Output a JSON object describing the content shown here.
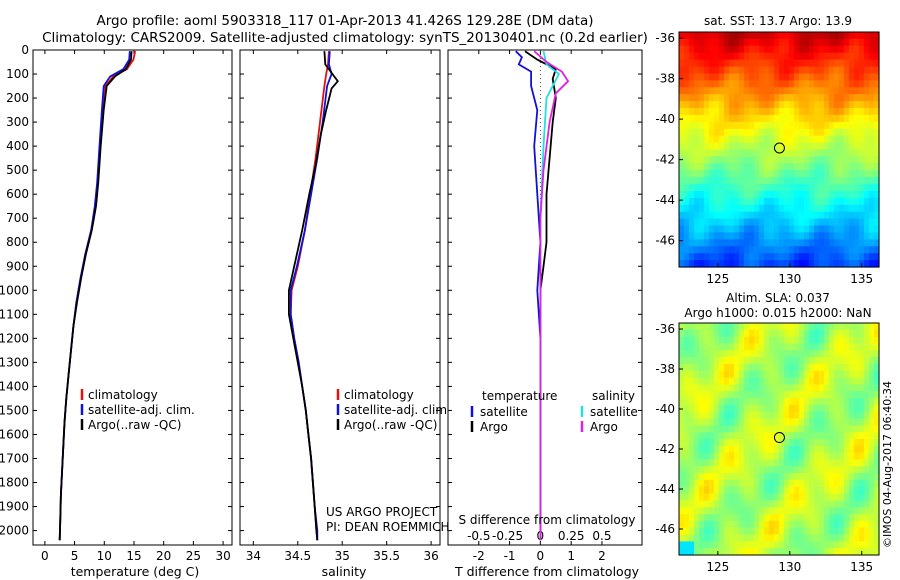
{
  "header": {
    "title": "Argo profile: aoml 5903318_117 01-Apr-2013 41.426S 129.28E (DM data)",
    "subtitle": "Climatology: CARS2009. Satellite-adjusted climatology: synTS_20130401.nc (0.2d earlier)"
  },
  "credits": {
    "project_line1": "US ARGO PROJECT",
    "project_line2": "PI: DEAN ROEMMICH",
    "stamp": "©IMOS 04-Aug-2017 06:40:34"
  },
  "colors": {
    "climatology": "#e01010",
    "satellite": "#1010d8",
    "argo": "#000000",
    "sal_satellite": "#20e0e0",
    "sal_argo": "#e020e0"
  },
  "chart_data": [
    {
      "id": "temperature",
      "type": "line",
      "xlabel": "temperature (deg C)",
      "xlim": [
        -2,
        31.5
      ],
      "xticks": [
        0,
        5,
        10,
        15,
        20,
        25,
        30
      ],
      "ylim": [
        2060,
        0
      ],
      "yticks": [
        0,
        100,
        200,
        300,
        400,
        500,
        600,
        700,
        800,
        900,
        1000,
        1100,
        1200,
        1300,
        1400,
        1500,
        1600,
        1700,
        1800,
        1900,
        2000
      ],
      "legend": [
        "climatology",
        "satellite-adj. clim.",
        "Argo(..raw -QC)"
      ],
      "series": [
        {
          "name": "climatology",
          "color": "climatology",
          "points": [
            [
              15.2,
              5
            ],
            [
              14.9,
              40
            ],
            [
              13.8,
              80
            ],
            [
              11.5,
              110
            ],
            [
              10.2,
              150
            ],
            [
              9.8,
              250
            ],
            [
              9.3,
              400
            ],
            [
              8.9,
              550
            ],
            [
              8.5,
              650
            ],
            [
              7.8,
              750
            ],
            [
              6.8,
              850
            ],
            [
              6.0,
              950
            ],
            [
              5.3,
              1050
            ],
            [
              4.8,
              1150
            ],
            [
              4.4,
              1250
            ],
            [
              4.0,
              1350
            ],
            [
              3.6,
              1450
            ],
            [
              3.3,
              1550
            ],
            [
              3.1,
              1650
            ],
            [
              2.9,
              1750
            ],
            [
              2.7,
              1850
            ],
            [
              2.6,
              1950
            ],
            [
              2.5,
              2040
            ]
          ]
        },
        {
          "name": "satellite-adj. clim.",
          "color": "satellite",
          "points": [
            [
              14.3,
              5
            ],
            [
              14.2,
              40
            ],
            [
              13.2,
              80
            ],
            [
              11.0,
              110
            ],
            [
              9.9,
              150
            ],
            [
              9.6,
              250
            ],
            [
              9.2,
              400
            ],
            [
              8.8,
              550
            ],
            [
              8.4,
              650
            ],
            [
              7.8,
              750
            ],
            [
              6.8,
              850
            ],
            [
              6.0,
              950
            ],
            [
              5.3,
              1050
            ],
            [
              4.8,
              1150
            ],
            [
              4.4,
              1250
            ],
            [
              4.0,
              1350
            ],
            [
              3.6,
              1450
            ],
            [
              3.3,
              1550
            ],
            [
              3.1,
              1650
            ],
            [
              2.9,
              1750
            ],
            [
              2.7,
              1850
            ],
            [
              2.6,
              1950
            ],
            [
              2.5,
              2040
            ]
          ]
        },
        {
          "name": "Argo(..raw -QC)",
          "color": "argo",
          "points": [
            [
              14.6,
              5
            ],
            [
              14.5,
              40
            ],
            [
              13.6,
              80
            ],
            [
              11.8,
              110
            ],
            [
              10.4,
              150
            ],
            [
              9.9,
              250
            ],
            [
              9.4,
              400
            ],
            [
              9.0,
              550
            ],
            [
              8.6,
              650
            ],
            [
              7.9,
              750
            ],
            [
              6.9,
              850
            ],
            [
              6.1,
              950
            ],
            [
              5.4,
              1050
            ],
            [
              4.8,
              1150
            ],
            [
              4.4,
              1250
            ],
            [
              4.0,
              1350
            ],
            [
              3.6,
              1450
            ],
            [
              3.3,
              1550
            ],
            [
              3.1,
              1650
            ],
            [
              2.9,
              1750
            ],
            [
              2.7,
              1850
            ],
            [
              2.6,
              1950
            ],
            [
              2.5,
              2040
            ]
          ]
        }
      ]
    },
    {
      "id": "salinity",
      "type": "line",
      "xlabel": "salinity",
      "xlim": [
        33.85,
        36.1
      ],
      "xticks": [
        "34",
        "34.5",
        "35",
        "35.5",
        "36"
      ],
      "ylim": [
        2060,
        0
      ],
      "legend": [
        "climatology",
        "satellite-adj. clim.",
        "Argo(..raw -QC)"
      ],
      "series": [
        {
          "name": "climatology",
          "color": "climatology",
          "points": [
            [
              34.85,
              5
            ],
            [
              34.84,
              60
            ],
            [
              34.82,
              100
            ],
            [
              34.8,
              150
            ],
            [
              34.75,
              300
            ],
            [
              34.7,
              450
            ],
            [
              34.64,
              600
            ],
            [
              34.58,
              750
            ],
            [
              34.5,
              900
            ],
            [
              34.43,
              1000
            ],
            [
              34.42,
              1100
            ],
            [
              34.46,
              1200
            ],
            [
              34.51,
              1300
            ],
            [
              34.55,
              1400
            ],
            [
              34.59,
              1500
            ],
            [
              34.62,
              1600
            ],
            [
              34.65,
              1700
            ],
            [
              34.67,
              1800
            ],
            [
              34.69,
              1900
            ],
            [
              34.71,
              2000
            ],
            [
              34.72,
              2040
            ]
          ]
        },
        {
          "name": "satellite-adj. clim.",
          "color": "satellite",
          "points": [
            [
              34.86,
              5
            ],
            [
              34.85,
              60
            ],
            [
              34.88,
              100
            ],
            [
              34.83,
              150
            ],
            [
              34.78,
              300
            ],
            [
              34.72,
              450
            ],
            [
              34.65,
              600
            ],
            [
              34.58,
              750
            ],
            [
              34.49,
              900
            ],
            [
              34.42,
              1000
            ],
            [
              34.42,
              1100
            ],
            [
              34.46,
              1200
            ],
            [
              34.51,
              1300
            ],
            [
              34.55,
              1400
            ],
            [
              34.59,
              1500
            ],
            [
              34.62,
              1600
            ],
            [
              34.65,
              1700
            ],
            [
              34.67,
              1800
            ],
            [
              34.69,
              1900
            ],
            [
              34.72,
              2000
            ],
            [
              34.72,
              2040
            ]
          ]
        },
        {
          "name": "Argo(..raw -QC)",
          "color": "argo",
          "points": [
            [
              34.8,
              5
            ],
            [
              34.81,
              60
            ],
            [
              34.91,
              110
            ],
            [
              34.95,
              130
            ],
            [
              34.88,
              160
            ],
            [
              34.82,
              250
            ],
            [
              34.76,
              350
            ],
            [
              34.7,
              480
            ],
            [
              34.63,
              600
            ],
            [
              34.55,
              750
            ],
            [
              34.46,
              900
            ],
            [
              34.4,
              1000
            ],
            [
              34.4,
              1100
            ],
            [
              34.45,
              1200
            ],
            [
              34.5,
              1300
            ],
            [
              34.55,
              1400
            ],
            [
              34.59,
              1500
            ],
            [
              34.62,
              1600
            ],
            [
              34.65,
              1700
            ],
            [
              34.67,
              1800
            ],
            [
              34.69,
              1900
            ],
            [
              34.71,
              2000
            ],
            [
              34.72,
              2040
            ]
          ]
        }
      ]
    },
    {
      "id": "difference",
      "type": "line",
      "xlabel": "T difference from climatology",
      "xlabel_top": "S difference from climatology",
      "xlim": [
        -3,
        3.3
      ],
      "xticks": [
        "-2",
        "-1",
        "0",
        "1",
        "2"
      ],
      "xticks_top": [
        {
          "at": -2,
          "label": "-0.5"
        },
        {
          "at": -1,
          "label": "-0.25"
        },
        {
          "at": 0,
          "label": "0"
        },
        {
          "at": 1,
          "label": "0.25"
        },
        {
          "at": 2,
          "label": "0.5"
        }
      ],
      "ylim": [
        2060,
        0
      ],
      "legend_groups": [
        {
          "title": "temperature",
          "items": [
            "satellite",
            "Argo"
          ],
          "colors": [
            "satellite",
            "argo"
          ]
        },
        {
          "title": "salinity",
          "items": [
            "satellite",
            "Argo"
          ],
          "colors": [
            "sal_satellite",
            "sal_argo"
          ]
        }
      ],
      "series": [
        {
          "name": "T satellite",
          "color": "satellite",
          "points": [
            [
              -0.8,
              5
            ],
            [
              -0.6,
              30
            ],
            [
              -0.7,
              60
            ],
            [
              -0.3,
              90
            ],
            [
              -0.3,
              150
            ],
            [
              -0.1,
              250
            ],
            [
              -0.2,
              400
            ],
            [
              -0.1,
              600
            ],
            [
              0.0,
              800
            ],
            [
              -0.1,
              1000
            ],
            [
              0.0,
              1200
            ],
            [
              0.0,
              1500
            ],
            [
              0.0,
              2040
            ]
          ]
        },
        {
          "name": "T Argo",
          "color": "argo",
          "points": [
            [
              -0.5,
              5
            ],
            [
              -0.1,
              40
            ],
            [
              0.5,
              80
            ],
            [
              0.4,
              120
            ],
            [
              0.5,
              200
            ],
            [
              0.4,
              300
            ],
            [
              0.3,
              450
            ],
            [
              0.2,
              600
            ],
            [
              0.2,
              800
            ],
            [
              0.1,
              900
            ],
            [
              0.0,
              1000
            ],
            [
              0.0,
              1100
            ],
            [
              0.0,
              1500
            ],
            [
              0.0,
              2040
            ]
          ]
        },
        {
          "name": "S satellite",
          "color": "sal_satellite",
          "points": [
            [
              0.1,
              5
            ],
            [
              0.2,
              60
            ],
            [
              0.6,
              100
            ],
            [
              0.2,
              200
            ],
            [
              0.1,
              400
            ],
            [
              0.0,
              700
            ],
            [
              0.0,
              1000
            ],
            [
              0.0,
              2040
            ]
          ]
        },
        {
          "name": "S Argo",
          "color": "sal_argo",
          "points": [
            [
              -0.2,
              5
            ],
            [
              0.2,
              50
            ],
            [
              0.7,
              90
            ],
            [
              0.9,
              130
            ],
            [
              0.5,
              180
            ],
            [
              0.3,
              300
            ],
            [
              0.1,
              500
            ],
            [
              0.0,
              700
            ],
            [
              0.0,
              1000
            ],
            [
              0.0,
              2040
            ]
          ]
        }
      ]
    },
    {
      "id": "sst_map",
      "type": "heatmap",
      "title": "sat. SST: 13.7 Argo: 13.9",
      "xlim": [
        122.3,
        136.2
      ],
      "ylim": [
        -47.3,
        -35.7
      ],
      "xticks": [
        "125",
        "130",
        "135"
      ],
      "yticks": [
        "-36",
        "-38",
        "-40",
        "-42",
        "-44",
        "-46"
      ],
      "colormap": "jet",
      "value_range": [
        8,
        17
      ],
      "profile_location": [
        129.28,
        -41.426
      ]
    },
    {
      "id": "sla_map",
      "type": "heatmap",
      "title_line1": "Altim. SLA: 0.037",
      "title_line2": "Argo h1000: 0.015 h2000: NaN",
      "xlim": [
        122.3,
        136.2
      ],
      "ylim": [
        -47.3,
        -35.7
      ],
      "xticks": [
        "125",
        "130",
        "135"
      ],
      "yticks": [
        "-36",
        "-38",
        "-40",
        "-42",
        "-44",
        "-46"
      ],
      "colormap": "jet",
      "profile_location": [
        129.28,
        -41.426
      ]
    }
  ]
}
